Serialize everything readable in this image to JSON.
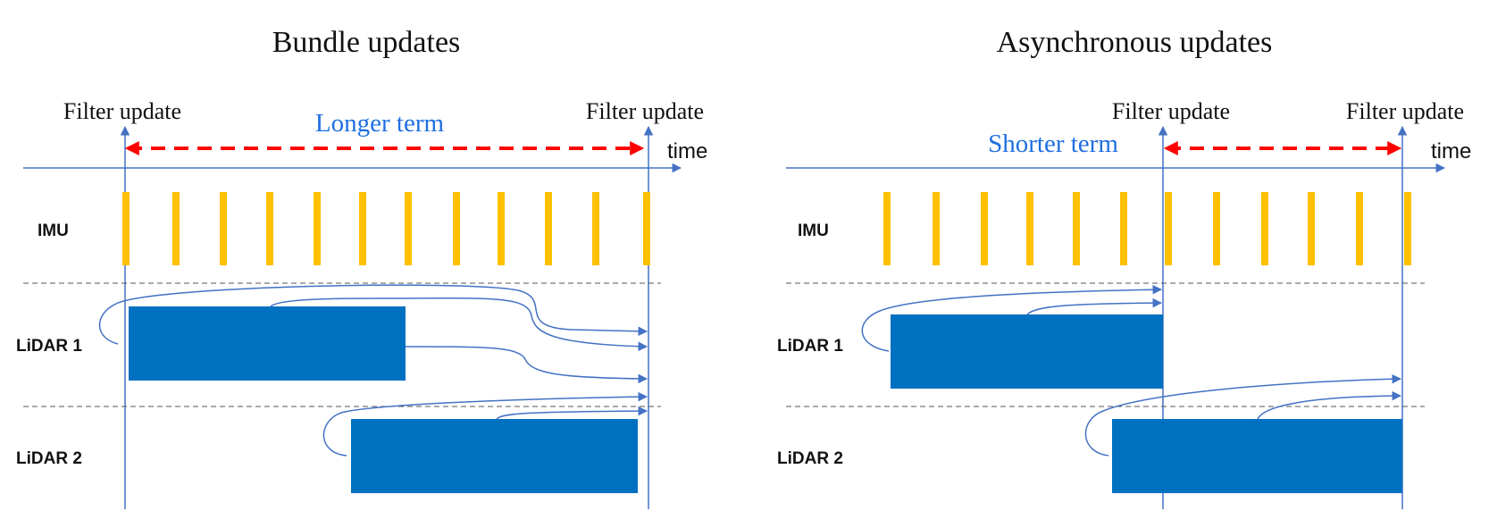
{
  "colors": {
    "axis": "#4472C4",
    "imu_tick": "#FFC000",
    "lidar_block": "#0070C0",
    "interval_arrow": "#FF0000",
    "term_text": "#1F6FE0",
    "dashed_separator": "#555555"
  },
  "panels": [
    {
      "title": "Bundle updates",
      "filter_labels": [
        "Filter update",
        "Filter update"
      ],
      "term_label": "Longer term",
      "time_label": "time",
      "rows": [
        "IMU",
        "LiDAR 1",
        "LiDAR 2"
      ]
    },
    {
      "title": "Asynchronous updates",
      "filter_labels": [
        "Filter update",
        "Filter update"
      ],
      "term_label": "Shorter term",
      "time_label": "time",
      "rows": [
        "IMU",
        "LiDAR 1",
        "LiDAR 2"
      ]
    }
  ]
}
